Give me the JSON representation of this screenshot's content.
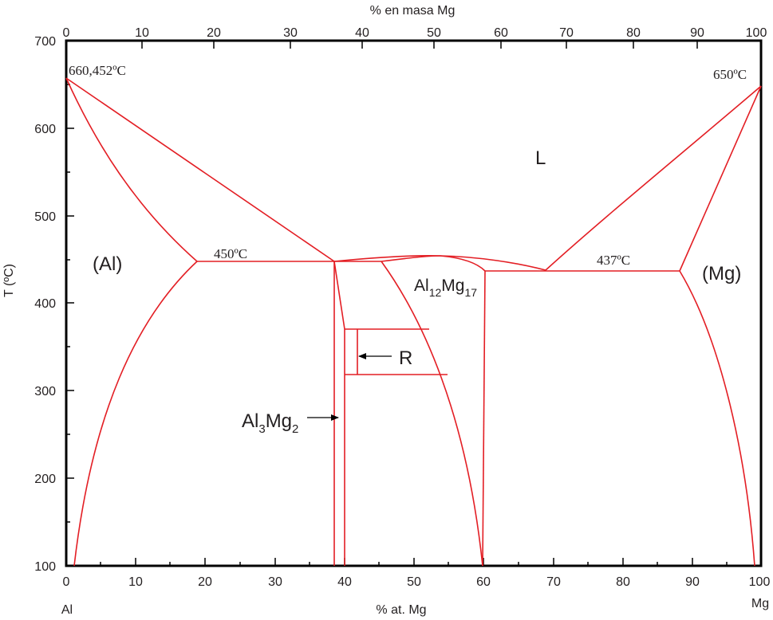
{
  "axes": {
    "top_title": "% en masa Mg",
    "bottom_title": "% at. Mg",
    "left_title": "T (ºC)",
    "corner_left": "Al",
    "corner_right": "Mg",
    "x_ticks": [
      "0",
      "10",
      "20",
      "30",
      "40",
      "50",
      "60",
      "70",
      "80",
      "90",
      "100"
    ],
    "y_ticks": [
      "100",
      "200",
      "300",
      "400",
      "500",
      "600",
      "700"
    ],
    "top_ticks": [
      "0",
      "10",
      "20",
      "30",
      "40",
      "50",
      "60",
      "70",
      "80",
      "90",
      "100"
    ]
  },
  "labels": {
    "temp_al_melt": "660,452ºC",
    "temp_mg_melt": "650ºC",
    "temp_eutectic_left": "450ºC",
    "temp_eutectic_right": "437ºC",
    "phase_liquid": "L",
    "phase_al": "(Al)",
    "phase_mg": "(Mg)",
    "phase_al12mg17_a": "Al",
    "phase_al12mg17_sub1": "12",
    "phase_al12mg17_b": "Mg",
    "phase_al12mg17_sub2": "17",
    "phase_al3mg2_a": "Al",
    "phase_al3mg2_sub1": "3",
    "phase_al3mg2_b": "Mg",
    "phase_al3mg2_sub2": "2",
    "phase_r": "R"
  },
  "colors": {
    "phase_lines": "#e31e24",
    "frame": "#000000",
    "text": "#231f20"
  }
}
